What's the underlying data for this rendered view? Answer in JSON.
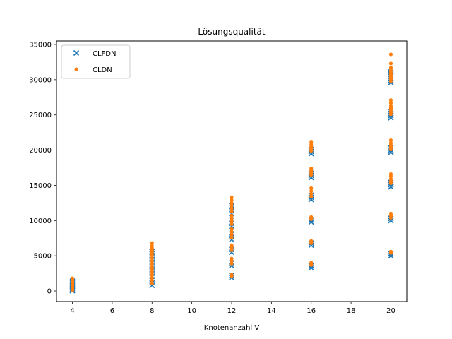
{
  "chart_data": {
    "type": "scatter",
    "title": "Lösungsqualität",
    "xlabel": "Knotenanzahl V",
    "ylabel": "",
    "xlim": [
      3.2,
      20.8
    ],
    "ylim": [
      -1500,
      35500
    ],
    "xticks": [
      4,
      6,
      8,
      10,
      12,
      14,
      16,
      18,
      20
    ],
    "yticks": [
      0,
      5000,
      10000,
      15000,
      20000,
      25000,
      30000,
      35000
    ],
    "grid": false,
    "legend_position": "top-left",
    "series": [
      {
        "name": "CLFDN",
        "marker": "x",
        "color": "#1f77b4",
        "points": [
          [
            4,
            50
          ],
          [
            4,
            200
          ],
          [
            4,
            400
          ],
          [
            4,
            600
          ],
          [
            4,
            800
          ],
          [
            4,
            1000
          ],
          [
            4,
            1200
          ],
          [
            4,
            1400
          ],
          [
            8,
            800
          ],
          [
            8,
            1200
          ],
          [
            8,
            1600
          ],
          [
            8,
            2100
          ],
          [
            8,
            2500
          ],
          [
            8,
            2900
          ],
          [
            8,
            3300
          ],
          [
            8,
            3700
          ],
          [
            8,
            4100
          ],
          [
            8,
            4500
          ],
          [
            8,
            4900
          ],
          [
            8,
            5300
          ],
          [
            8,
            5600
          ],
          [
            12,
            1900
          ],
          [
            12,
            2200
          ],
          [
            12,
            3600
          ],
          [
            12,
            4000
          ],
          [
            12,
            5500
          ],
          [
            12,
            5900
          ],
          [
            12,
            7300
          ],
          [
            12,
            7700
          ],
          [
            12,
            8100
          ],
          [
            12,
            9200
          ],
          [
            12,
            9600
          ],
          [
            12,
            10100
          ],
          [
            12,
            11000
          ],
          [
            12,
            11400
          ],
          [
            12,
            11800
          ],
          [
            12,
            12100
          ],
          [
            16,
            3300
          ],
          [
            16,
            3600
          ],
          [
            16,
            6500
          ],
          [
            16,
            6800
          ],
          [
            16,
            9800
          ],
          [
            16,
            10100
          ],
          [
            16,
            13000
          ],
          [
            16,
            13300
          ],
          [
            16,
            13600
          ],
          [
            16,
            16100
          ],
          [
            16,
            16400
          ],
          [
            16,
            16700
          ],
          [
            16,
            19500
          ],
          [
            16,
            19800
          ],
          [
            16,
            20100
          ],
          [
            20,
            5000
          ],
          [
            20,
            5300
          ],
          [
            20,
            10000
          ],
          [
            20,
            10300
          ],
          [
            20,
            14800
          ],
          [
            20,
            15100
          ],
          [
            20,
            15400
          ],
          [
            20,
            19700
          ],
          [
            20,
            20000
          ],
          [
            20,
            20300
          ],
          [
            20,
            24600
          ],
          [
            20,
            24900
          ],
          [
            20,
            25200
          ],
          [
            20,
            25500
          ],
          [
            20,
            29600
          ],
          [
            20,
            29900
          ],
          [
            20,
            30200
          ],
          [
            20,
            30500
          ],
          [
            20,
            30800
          ],
          [
            20,
            31100
          ]
        ]
      },
      {
        "name": "CLDN",
        "marker": "o",
        "color": "#ff7f0e",
        "points": [
          [
            4,
            100
          ],
          [
            4,
            300
          ],
          [
            4,
            500
          ],
          [
            4,
            700
          ],
          [
            4,
            900
          ],
          [
            4,
            1100
          ],
          [
            4,
            1300
          ],
          [
            4,
            1500
          ],
          [
            4,
            1700
          ],
          [
            4,
            1800
          ],
          [
            8,
            1100
          ],
          [
            8,
            1500
          ],
          [
            8,
            1900
          ],
          [
            8,
            2300
          ],
          [
            8,
            2700
          ],
          [
            8,
            3100
          ],
          [
            8,
            3500
          ],
          [
            8,
            3900
          ],
          [
            8,
            4300
          ],
          [
            8,
            4700
          ],
          [
            8,
            5100
          ],
          [
            8,
            5500
          ],
          [
            8,
            5800
          ],
          [
            8,
            6100
          ],
          [
            8,
            6400
          ],
          [
            8,
            6800
          ],
          [
            12,
            2100
          ],
          [
            12,
            2300
          ],
          [
            12,
            3900
          ],
          [
            12,
            4300
          ],
          [
            12,
            4600
          ],
          [
            12,
            5800
          ],
          [
            12,
            6200
          ],
          [
            12,
            6500
          ],
          [
            12,
            7600
          ],
          [
            12,
            8000
          ],
          [
            12,
            8400
          ],
          [
            12,
            8800
          ],
          [
            12,
            9500
          ],
          [
            12,
            9900
          ],
          [
            12,
            10300
          ],
          [
            12,
            10700
          ],
          [
            12,
            11300
          ],
          [
            12,
            11700
          ],
          [
            12,
            12100
          ],
          [
            12,
            12500
          ],
          [
            12,
            12900
          ],
          [
            12,
            13300
          ],
          [
            16,
            3700
          ],
          [
            16,
            4000
          ],
          [
            16,
            6800
          ],
          [
            16,
            7100
          ],
          [
            16,
            10200
          ],
          [
            16,
            10500
          ],
          [
            16,
            13400
          ],
          [
            16,
            13800
          ],
          [
            16,
            14200
          ],
          [
            16,
            14600
          ],
          [
            16,
            16500
          ],
          [
            16,
            16800
          ],
          [
            16,
            17100
          ],
          [
            16,
            17400
          ],
          [
            16,
            19900
          ],
          [
            16,
            20200
          ],
          [
            16,
            20500
          ],
          [
            16,
            20800
          ],
          [
            16,
            21200
          ],
          [
            20,
            5400
          ],
          [
            20,
            5600
          ],
          [
            20,
            10400
          ],
          [
            20,
            10700
          ],
          [
            20,
            11000
          ],
          [
            20,
            15300
          ],
          [
            20,
            15600
          ],
          [
            20,
            15900
          ],
          [
            20,
            16300
          ],
          [
            20,
            16600
          ],
          [
            20,
            20100
          ],
          [
            20,
            20400
          ],
          [
            20,
            20700
          ],
          [
            20,
            21000
          ],
          [
            20,
            21400
          ],
          [
            20,
            25100
          ],
          [
            20,
            25400
          ],
          [
            20,
            25700
          ],
          [
            20,
            26000
          ],
          [
            20,
            26300
          ],
          [
            20,
            26700
          ],
          [
            20,
            27100
          ],
          [
            20,
            29800
          ],
          [
            20,
            30100
          ],
          [
            20,
            30400
          ],
          [
            20,
            30700
          ],
          [
            20,
            31000
          ],
          [
            20,
            31300
          ],
          [
            20,
            31700
          ],
          [
            20,
            32300
          ],
          [
            20,
            33600
          ]
        ]
      }
    ]
  }
}
